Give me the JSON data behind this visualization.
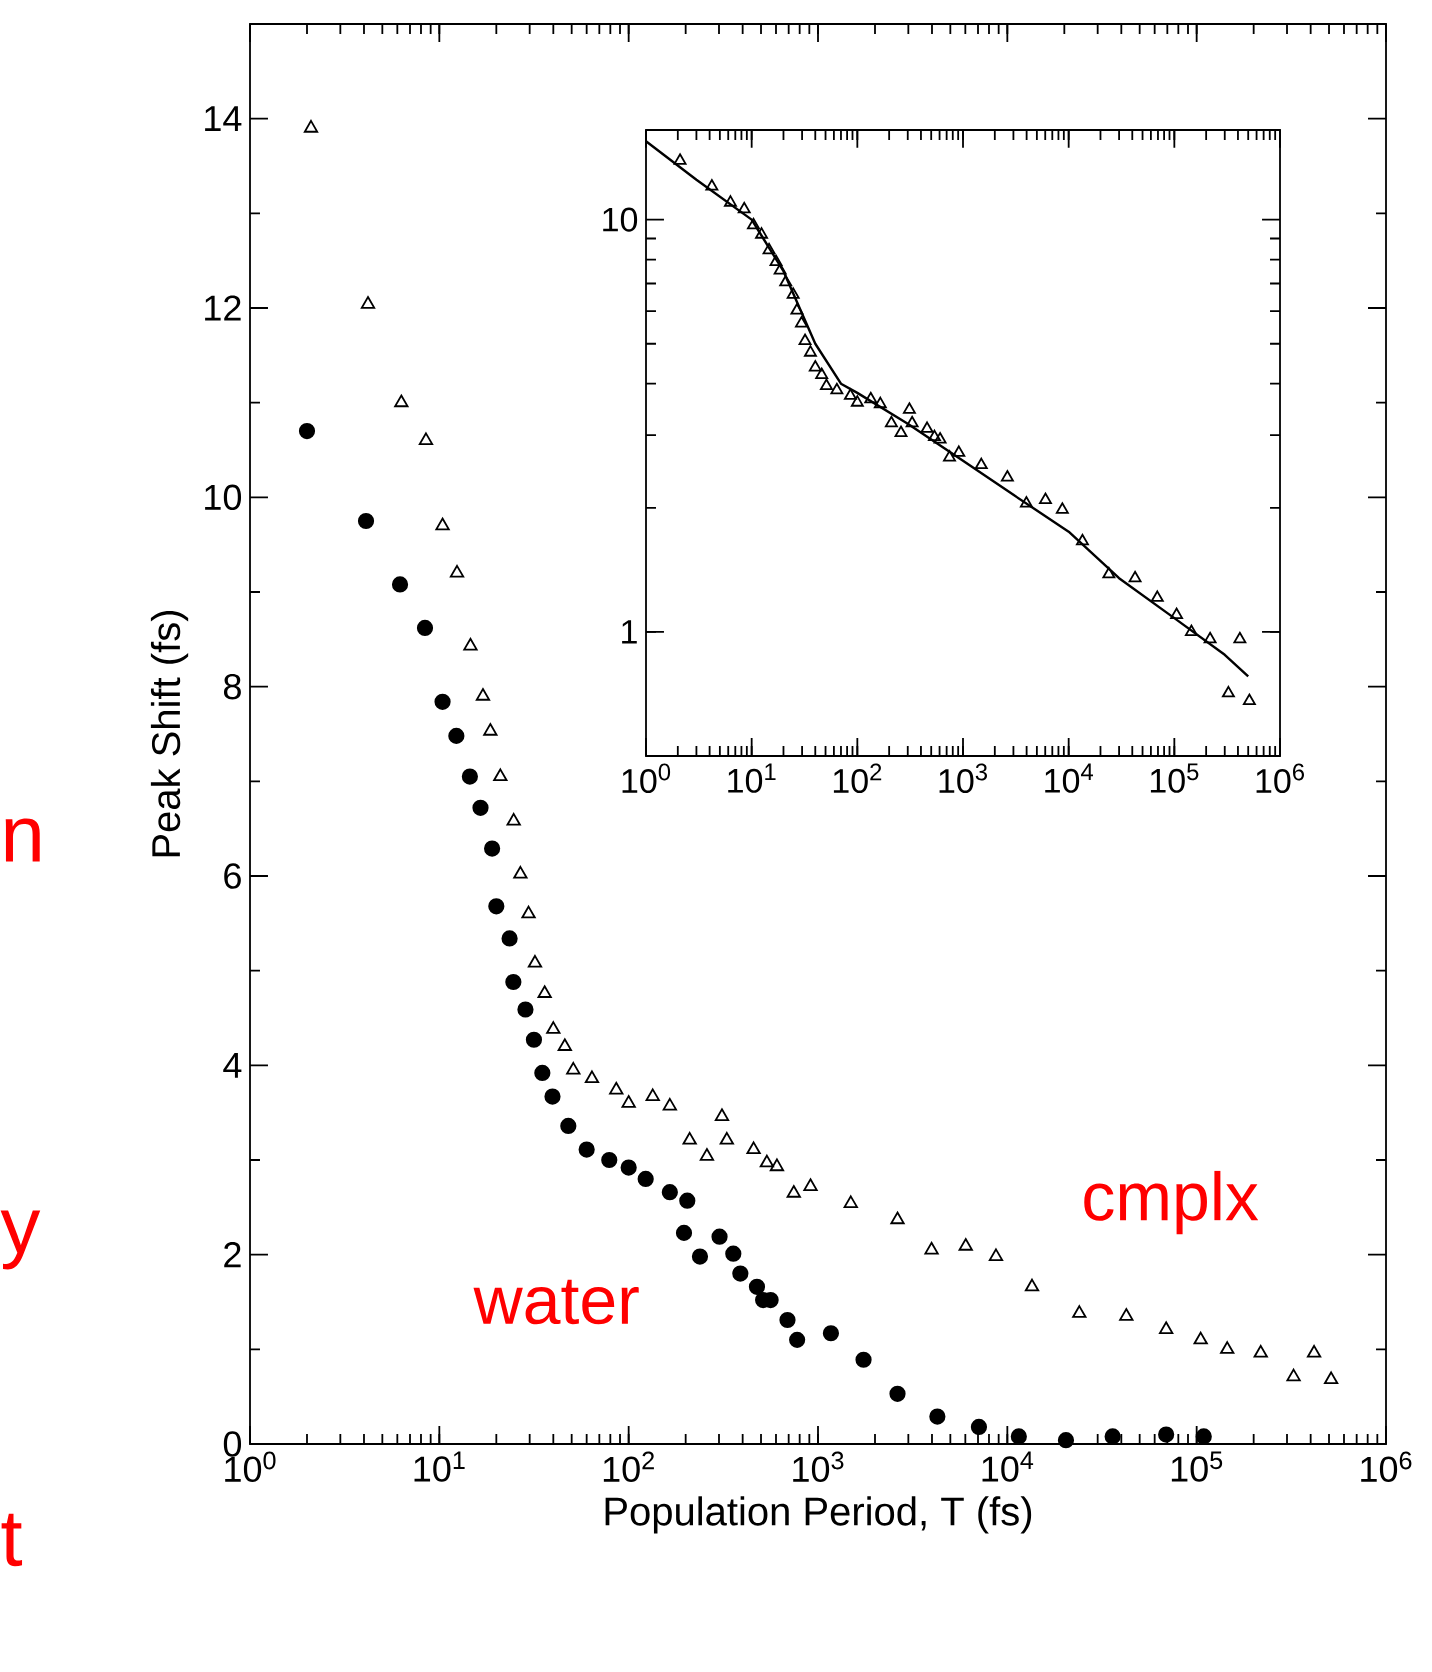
{
  "chart_data": [
    {
      "type": "scatter",
      "xlabel": "Population Period, T (fs)",
      "ylabel": "Peak Shift (fs)",
      "log": "x",
      "xlim": [
        1,
        1000000
      ],
      "ylim": [
        0,
        15
      ],
      "xticks": [
        {
          "value": 1,
          "label": "10$^{0}$"
        },
        {
          "value": 10,
          "label": "10$^{1}$"
        },
        {
          "value": 100,
          "label": "10$^{2}$"
        },
        {
          "value": 1000,
          "label": "10$^{3}$"
        },
        {
          "value": 10000,
          "label": "10$^{4}$"
        },
        {
          "value": 100000,
          "label": "10$^{5}$"
        },
        {
          "value": 1000000,
          "label": "10$^{6}$"
        }
      ],
      "yticks": [
        0,
        {
          "value": 1,
          "label": null
        },
        2,
        {
          "value": 3,
          "label": null
        },
        4,
        {
          "value": 5,
          "label": null
        },
        6,
        {
          "value": 7,
          "label": null
        },
        8,
        {
          "value": 9,
          "label": null
        },
        10,
        {
          "value": 11,
          "label": null
        },
        12,
        {
          "value": 13,
          "label": null
        },
        14
      ],
      "annotations": [
        "n",
        "y",
        "t"
      ],
      "series": [
        {
          "name": "water",
          "color": "#000000",
          "marker": "circle",
          "x": [
            2.0,
            4.1,
            6.2,
            8.4,
            10.4,
            12.3,
            14.5,
            16.5,
            19,
            20,
            23.5,
            24.6,
            28.5,
            31.6,
            35,
            39.6,
            48,
            60,
            79,
            100,
            123,
            165,
            204,
            196,
            238,
            302,
            357,
            389,
            476,
            513,
            562,
            690,
            776,
            1170,
            1740,
            2630,
            4270,
            7080,
            11500,
            20400,
            36000,
            69000,
            109000
          ],
          "values": [
            10.7,
            9.75,
            9.08,
            8.62,
            7.84,
            7.48,
            7.05,
            6.72,
            6.29,
            5.68,
            5.34,
            4.88,
            4.59,
            4.27,
            3.92,
            3.67,
            3.36,
            3.11,
            3.0,
            2.92,
            2.8,
            2.66,
            2.57,
            2.23,
            1.98,
            2.19,
            2.01,
            1.8,
            1.66,
            1.52,
            1.52,
            1.31,
            1.1,
            1.17,
            0.89,
            0.53,
            0.29,
            0.18,
            0.08,
            0.04,
            0.08,
            0.1,
            0.08
          ]
        },
        {
          "name": "cmplx",
          "color": "#000000",
          "marker": "triangle",
          "x": [
            2.1,
            4.2,
            6.3,
            8.5,
            10.4,
            12.4,
            14.6,
            17,
            18.6,
            21,
            24.7,
            26.8,
            29.6,
            32,
            36,
            40,
            46,
            51,
            64,
            86,
            100,
            134,
            165,
            210,
            259,
            311,
            330,
            457,
            537,
            607,
            745,
            913,
            1490,
            2630,
            3980,
            6030,
            8710,
            13500,
            24000,
            42500,
            69000,
            105000,
            145000,
            218000,
            325000,
            417000,
            513000
          ],
          "values": [
            13.9,
            12.04,
            11.0,
            10.6,
            9.7,
            9.2,
            8.43,
            7.9,
            7.53,
            7.05,
            6.58,
            6.02,
            5.6,
            5.08,
            4.76,
            4.38,
            4.2,
            3.95,
            3.86,
            3.74,
            3.6,
            3.67,
            3.57,
            3.21,
            3.04,
            3.46,
            3.21,
            3.11,
            2.97,
            2.93,
            2.65,
            2.72,
            2.54,
            2.37,
            2.05,
            2.09,
            1.98,
            1.66,
            1.38,
            1.35,
            1.21,
            1.1,
            1.0,
            0.96,
            0.71,
            0.96,
            0.68
          ]
        }
      ]
    },
    {
      "type": "scatter",
      "log": "xy",
      "xlim": [
        1,
        1000000
      ],
      "ylim": [
        0.5,
        16.5
      ],
      "xticks": [
        {
          "value": 1,
          "label": "10$^{0}$"
        },
        {
          "value": 10,
          "label": "10$^{1}$"
        },
        {
          "value": 100,
          "label": "10$^{2}$"
        },
        {
          "value": 1000,
          "label": "10$^{3}$"
        },
        {
          "value": 10000,
          "label": "10$^{4}$"
        },
        {
          "value": 100000,
          "label": "10$^{5}$"
        },
        {
          "value": 1000000,
          "label": "10$^{6}$"
        }
      ],
      "yticks": [
        1,
        10
      ],
      "series": [
        {
          "color": "#000000",
          "marker": "triangle",
          "x": [
            2.1,
            4.2,
            6.3,
            8.5,
            10.4,
            12.4,
            14.6,
            17,
            18.6,
            21,
            24.7,
            26.8,
            29.6,
            32,
            36,
            40,
            46,
            51,
            64,
            86,
            100,
            134,
            165,
            210,
            259,
            311,
            330,
            457,
            537,
            607,
            745,
            913,
            1490,
            2630,
            3980,
            6030,
            8710,
            13500,
            24000,
            42500,
            69000,
            105000,
            145000,
            218000,
            325000,
            417000,
            513000
          ],
          "values": [
            13.9,
            12.04,
            11.0,
            10.6,
            9.7,
            9.2,
            8.43,
            7.9,
            7.53,
            7.05,
            6.58,
            6.02,
            5.6,
            5.08,
            4.76,
            4.38,
            4.2,
            3.95,
            3.86,
            3.74,
            3.6,
            3.67,
            3.57,
            3.21,
            3.04,
            3.46,
            3.21,
            3.11,
            2.97,
            2.93,
            2.65,
            2.72,
            2.54,
            2.37,
            2.05,
            2.09,
            1.98,
            1.66,
            1.38,
            1.35,
            1.21,
            1.1,
            1.0,
            0.96,
            0.71,
            0.96,
            0.68
          ]
        },
        {
          "type": "line",
          "color": "#000000",
          "marker": "none",
          "x": [
            1,
            3,
            10,
            20,
            40,
            70,
            100,
            300,
            1000,
            3000,
            10000,
            30000,
            100000,
            300000,
            500000
          ],
          "values": [
            15.5,
            12.5,
            10.0,
            7.5,
            5.0,
            4.0,
            3.8,
            3.2,
            2.6,
            2.15,
            1.75,
            1.35,
            1.08,
            0.88,
            0.78
          ]
        }
      ]
    }
  ]
}
